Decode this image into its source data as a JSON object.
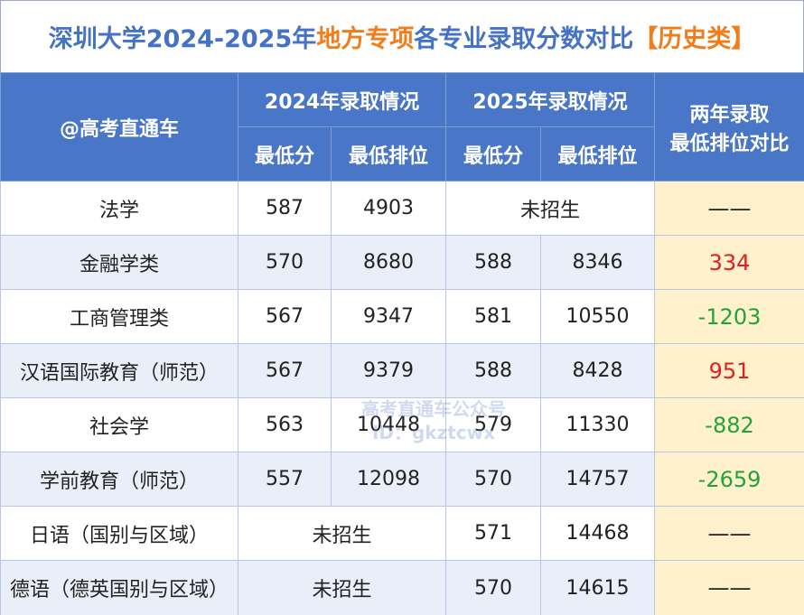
{
  "title": {
    "parts": [
      "深圳大学2024-2025年",
      "地方专项",
      "各专业录取分数对比",
      "【历史类】"
    ]
  },
  "header": {
    "corner": "@高考直通车",
    "year_2024": "2024年录取情况",
    "year_2025": "2025年录取情况",
    "compare": "两年录取\n最低排位对比",
    "min_score": "最低分",
    "min_rank": "最低排位"
  },
  "table": {
    "rows": [
      {
        "major": "法学",
        "y2024": [
          587,
          4903
        ],
        "y2025": "未招生",
        "diff": "——"
      },
      {
        "major": "金融学类",
        "y2024": [
          570,
          8680
        ],
        "y2025": [
          588,
          8346
        ],
        "diff": 334
      },
      {
        "major": "工商管理类",
        "y2024": [
          567,
          9347
        ],
        "y2025": [
          581,
          10550
        ],
        "diff": -1203
      },
      {
        "major": "汉语国际教育（师范）",
        "y2024": [
          567,
          9379
        ],
        "y2025": [
          588,
          8428
        ],
        "diff": 951
      },
      {
        "major": "社会学",
        "y2024": [
          563,
          10448
        ],
        "y2025": [
          579,
          11330
        ],
        "diff": -882
      },
      {
        "major": "学前教育（师范）",
        "y2024": [
          557,
          12098
        ],
        "y2025": [
          570,
          14757
        ],
        "diff": -2659
      },
      {
        "major": "日语（国别与区域）",
        "y2024": "未招生",
        "y2025": [
          571,
          14468
        ],
        "diff": "——"
      },
      {
        "major": "德语（德英国别与区域）",
        "y2024": "未招生",
        "y2025": [
          570,
          14615
        ],
        "diff": "——"
      }
    ]
  },
  "watermark": {
    "line1": "高考直通车公众号",
    "line2": "ID：gkztcwx"
  }
}
